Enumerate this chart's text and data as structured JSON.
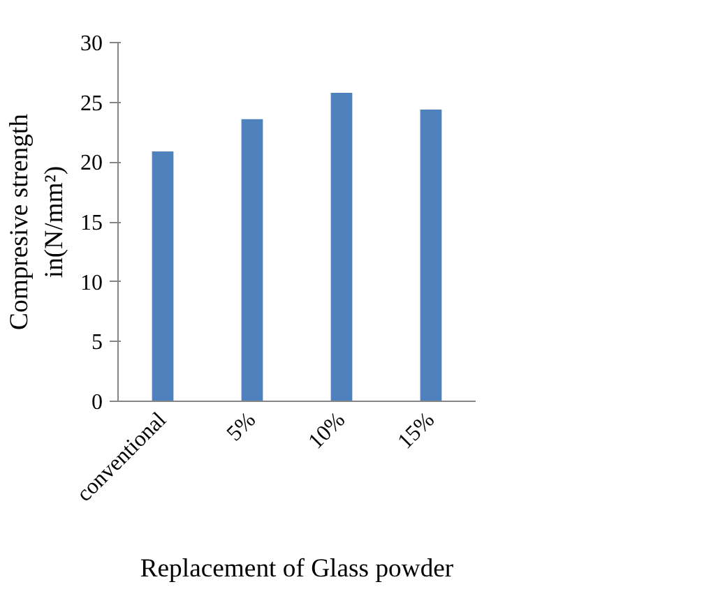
{
  "chart_data": {
    "type": "bar",
    "xlabel": "Replacement of Glass powder",
    "ylabel": "Compresive strength\nin(N/mm²)",
    "categories": [
      "conventional",
      "5%",
      "10%",
      "15%"
    ],
    "values": [
      20.9,
      23.6,
      25.8,
      24.4
    ],
    "color": "#4f81bd",
    "ylim": [
      0,
      30
    ],
    "yticks": [
      0,
      5,
      10,
      15,
      20,
      25,
      30
    ],
    "grid": false
  }
}
